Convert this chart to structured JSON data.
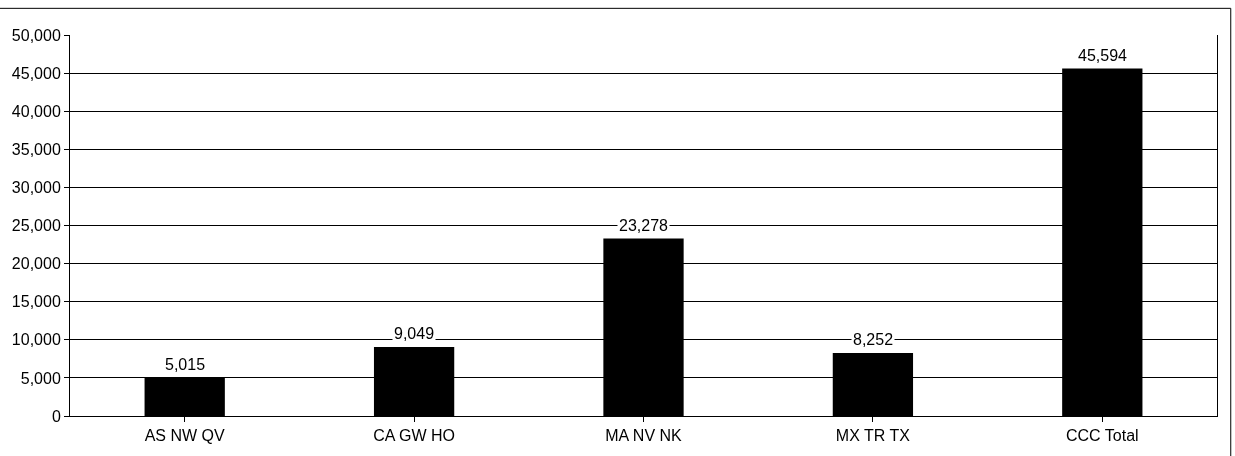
{
  "chart_data": {
    "type": "bar",
    "categories": [
      "AS NW QV",
      "CA GW HO",
      "MA NV NK",
      "MX TR TX",
      "CCC Total"
    ],
    "values": [
      5015,
      9049,
      23278,
      8252,
      45594
    ],
    "value_labels": [
      "5,015",
      "9,049",
      "23,278",
      "8,252",
      "45,594"
    ],
    "color": "#000000",
    "ylim": [
      0,
      50000
    ],
    "yticks": [
      {
        "value": 0,
        "label": "0"
      },
      {
        "value": 5000,
        "label": "5,000"
      },
      {
        "value": 10000,
        "label": "10,000"
      },
      {
        "value": 15000,
        "label": "15,000"
      },
      {
        "value": 20000,
        "label": "20,000"
      },
      {
        "value": 25000,
        "label": "25,000"
      },
      {
        "value": 30000,
        "label": "30,000"
      },
      {
        "value": 35000,
        "label": "35,000"
      },
      {
        "value": 40000,
        "label": "40,000"
      },
      {
        "value": 45000,
        "label": "45,000"
      },
      {
        "value": 50000,
        "label": "50,000"
      }
    ],
    "grid": "y",
    "legend": false
  }
}
